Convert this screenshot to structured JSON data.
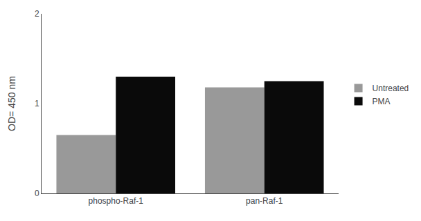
{
  "chart_data": {
    "type": "bar",
    "categories": [
      "phospho-Raf-1",
      "pan-Raf-1"
    ],
    "series": [
      {
        "name": "Untreated",
        "color": "#999999",
        "values": [
          0.65,
          1.18
        ]
      },
      {
        "name": "PMA",
        "color": "#0a0a0a",
        "values": [
          1.3,
          1.25
        ]
      }
    ],
    "ylabel": "OD= 450 nm",
    "ylim": [
      0,
      2
    ],
    "yticks": [
      0,
      1,
      2
    ],
    "grid": false,
    "legend": "right"
  }
}
